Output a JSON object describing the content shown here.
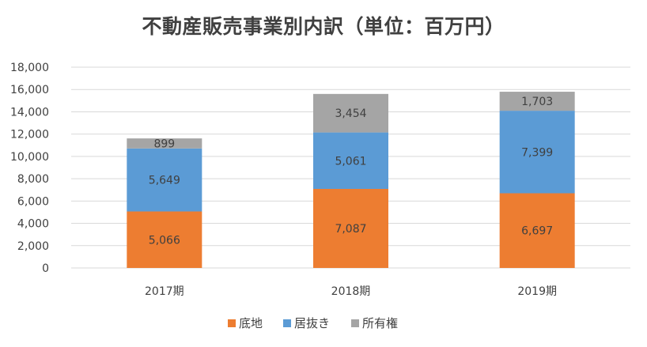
{
  "chart_data": {
    "type": "bar",
    "stacked": true,
    "title": "不動産販売事業別内訳（単位：百万円）",
    "categories": [
      "2017期",
      "2018期",
      "2019期"
    ],
    "series": [
      {
        "name": "底地",
        "color": "#ed7d31",
        "values": [
          5066,
          7087,
          6697
        ],
        "labels": [
          "5,066",
          "7,087",
          "6,697"
        ]
      },
      {
        "name": "居抜き",
        "color": "#5b9bd5",
        "values": [
          5649,
          5061,
          7399
        ],
        "labels": [
          "5,649",
          "5,061",
          "7,399"
        ]
      },
      {
        "name": "所有権",
        "color": "#a5a5a5",
        "values": [
          899,
          3454,
          1703
        ],
        "labels": [
          "899",
          "3,454",
          "1,703"
        ]
      }
    ],
    "ylim": [
      0,
      18000
    ],
    "yticks": [
      0,
      2000,
      4000,
      6000,
      8000,
      10000,
      12000,
      14000,
      16000,
      18000
    ],
    "ytick_labels": [
      "0",
      "2,000",
      "4,000",
      "6,000",
      "8,000",
      "10,000",
      "12,000",
      "14,000",
      "16,000",
      "18,000"
    ],
    "grid": true,
    "legend": "bottom"
  }
}
